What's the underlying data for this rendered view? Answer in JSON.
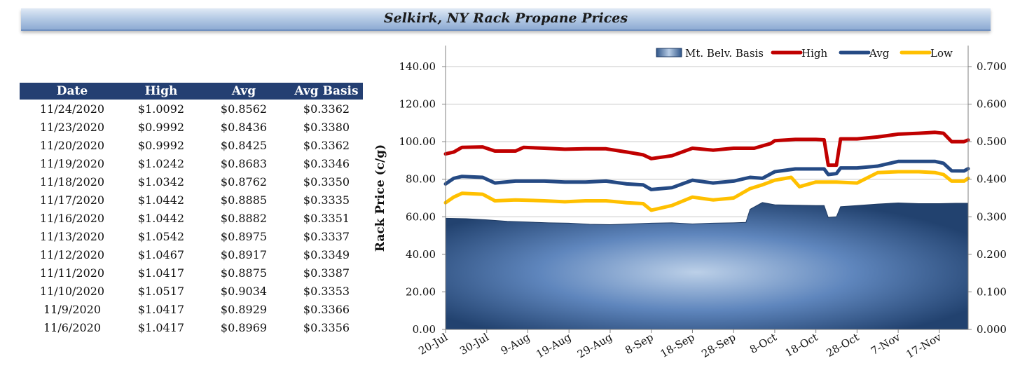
{
  "header": {
    "title": "Selkirk, NY Rack Propane Prices"
  },
  "table": {
    "columns": [
      "Date",
      "High",
      "Avg",
      "Avg Basis"
    ],
    "rows": [
      [
        "11/24/2020",
        "$1.0092",
        "$0.8562",
        "$0.3362"
      ],
      [
        "11/23/2020",
        "$0.9992",
        "$0.8436",
        "$0.3380"
      ],
      [
        "11/20/2020",
        "$0.9992",
        "$0.8425",
        "$0.3362"
      ],
      [
        "11/19/2020",
        "$1.0242",
        "$0.8683",
        "$0.3346"
      ],
      [
        "11/18/2020",
        "$1.0342",
        "$0.8762",
        "$0.3350"
      ],
      [
        "11/17/2020",
        "$1.0442",
        "$0.8885",
        "$0.3335"
      ],
      [
        "11/16/2020",
        "$1.0442",
        "$0.8882",
        "$0.3351"
      ],
      [
        "11/13/2020",
        "$1.0542",
        "$0.8975",
        "$0.3337"
      ],
      [
        "11/12/2020",
        "$1.0467",
        "$0.8917",
        "$0.3349"
      ],
      [
        "11/11/2020",
        "$1.0417",
        "$0.8875",
        "$0.3387"
      ],
      [
        "11/10/2020",
        "$1.0517",
        "$0.9034",
        "$0.3353"
      ],
      [
        "11/9/2020",
        "$1.0417",
        "$0.8929",
        "$0.3366"
      ],
      [
        "11/6/2020",
        "$1.0417",
        "$0.8969",
        "$0.3356"
      ]
    ]
  },
  "chart_data": {
    "type": "line",
    "ylabel": "Rack Price (c/g)",
    "ylim": [
      0,
      140
    ],
    "y2lim": [
      0,
      0.7
    ],
    "yticks": [
      "0.00",
      "20.00",
      "40.00",
      "60.00",
      "80.00",
      "100.00",
      "120.00",
      "140.00"
    ],
    "y2ticks": [
      "0.000",
      "0.100",
      "0.200",
      "0.300",
      "0.400",
      "0.500",
      "0.600",
      "0.700"
    ],
    "x_range": [
      "2020-07-20",
      "2020-11-24"
    ],
    "xticks": [
      {
        "label": "20-Jul",
        "date": "2020-07-20"
      },
      {
        "label": "30-Jul",
        "date": "2020-07-30"
      },
      {
        "label": "9-Aug",
        "date": "2020-08-09"
      },
      {
        "label": "19-Aug",
        "date": "2020-08-19"
      },
      {
        "label": "29-Aug",
        "date": "2020-08-29"
      },
      {
        "label": "8-Sep",
        "date": "2020-09-08"
      },
      {
        "label": "18-Sep",
        "date": "2020-09-18"
      },
      {
        "label": "28-Sep",
        "date": "2020-09-28"
      },
      {
        "label": "8-Oct",
        "date": "2020-10-08"
      },
      {
        "label": "18-Oct",
        "date": "2020-10-18"
      },
      {
        "label": "28-Oct",
        "date": "2020-10-28"
      },
      {
        "label": "7-Nov",
        "date": "2020-11-07"
      },
      {
        "label": "17-Nov",
        "date": "2020-11-17"
      }
    ],
    "legend_position": "top-right",
    "grid": "horizontal",
    "series": [
      {
        "name": "Mt. Belv. Basis",
        "type": "area",
        "axis": "right",
        "color": "#2f5588",
        "points": [
          [
            "2020-07-20",
            0.296
          ],
          [
            "2020-07-25",
            0.295
          ],
          [
            "2020-07-30",
            0.292
          ],
          [
            "2020-08-04",
            0.288
          ],
          [
            "2020-08-09",
            0.286
          ],
          [
            "2020-08-14",
            0.284
          ],
          [
            "2020-08-19",
            0.283
          ],
          [
            "2020-08-24",
            0.28
          ],
          [
            "2020-08-29",
            0.279
          ],
          [
            "2020-09-03",
            0.281
          ],
          [
            "2020-09-08",
            0.283
          ],
          [
            "2020-09-13",
            0.284
          ],
          [
            "2020-09-18",
            0.281
          ],
          [
            "2020-09-23",
            0.283
          ],
          [
            "2020-09-28",
            0.284
          ],
          [
            "2020-10-01",
            0.285
          ],
          [
            "2020-10-02",
            0.32
          ],
          [
            "2020-10-05",
            0.338
          ],
          [
            "2020-10-08",
            0.332
          ],
          [
            "2020-10-13",
            0.331
          ],
          [
            "2020-10-18",
            0.33
          ],
          [
            "2020-10-20",
            0.33
          ],
          [
            "2020-10-21",
            0.298
          ],
          [
            "2020-10-23",
            0.3
          ],
          [
            "2020-10-24",
            0.327
          ],
          [
            "2020-10-28",
            0.33
          ],
          [
            "2020-11-02",
            0.334
          ],
          [
            "2020-11-07",
            0.337
          ],
          [
            "2020-11-12",
            0.335
          ],
          [
            "2020-11-17",
            0.335
          ],
          [
            "2020-11-21",
            0.336
          ],
          [
            "2020-11-24",
            0.336
          ]
        ]
      },
      {
        "name": "High",
        "type": "line",
        "axis": "left",
        "color": "#c00000",
        "points": [
          [
            "2020-07-20",
            93.5
          ],
          [
            "2020-07-22",
            94.5
          ],
          [
            "2020-07-24",
            97
          ],
          [
            "2020-07-29",
            97.2
          ],
          [
            "2020-08-01",
            95
          ],
          [
            "2020-08-06",
            95
          ],
          [
            "2020-08-08",
            97
          ],
          [
            "2020-08-13",
            96.5
          ],
          [
            "2020-08-18",
            96
          ],
          [
            "2020-08-23",
            96.2
          ],
          [
            "2020-08-28",
            96.2
          ],
          [
            "2020-09-02",
            94.5
          ],
          [
            "2020-09-06",
            93
          ],
          [
            "2020-09-08",
            91
          ],
          [
            "2020-09-13",
            92.5
          ],
          [
            "2020-09-18",
            96.5
          ],
          [
            "2020-09-23",
            95.5
          ],
          [
            "2020-09-28",
            96.5
          ],
          [
            "2020-10-03",
            96.5
          ],
          [
            "2020-10-07",
            99
          ],
          [
            "2020-10-08",
            100.5
          ],
          [
            "2020-10-13",
            101.2
          ],
          [
            "2020-10-18",
            101.2
          ],
          [
            "2020-10-20",
            101
          ],
          [
            "2020-10-21",
            87.5
          ],
          [
            "2020-10-23",
            87.5
          ],
          [
            "2020-10-24",
            101.5
          ],
          [
            "2020-10-28",
            101.5
          ],
          [
            "2020-11-02",
            102.5
          ],
          [
            "2020-11-07",
            104
          ],
          [
            "2020-11-12",
            104.5
          ],
          [
            "2020-11-16",
            105
          ],
          [
            "2020-11-18",
            104.5
          ],
          [
            "2020-11-20",
            100
          ],
          [
            "2020-11-23",
            100
          ],
          [
            "2020-11-24",
            100.9
          ]
        ]
      },
      {
        "name": "Avg",
        "type": "line",
        "axis": "left",
        "color": "#254a84",
        "points": [
          [
            "2020-07-20",
            77.5
          ],
          [
            "2020-07-22",
            80.5
          ],
          [
            "2020-07-24",
            81.5
          ],
          [
            "2020-07-29",
            81
          ],
          [
            "2020-08-01",
            78
          ],
          [
            "2020-08-06",
            79
          ],
          [
            "2020-08-13",
            79
          ],
          [
            "2020-08-18",
            78.5
          ],
          [
            "2020-08-23",
            78.5
          ],
          [
            "2020-08-28",
            79
          ],
          [
            "2020-09-02",
            77.5
          ],
          [
            "2020-09-06",
            77
          ],
          [
            "2020-09-08",
            74.5
          ],
          [
            "2020-09-13",
            75.5
          ],
          [
            "2020-09-18",
            79.5
          ],
          [
            "2020-09-23",
            78
          ],
          [
            "2020-09-28",
            79
          ],
          [
            "2020-10-02",
            81
          ],
          [
            "2020-10-05",
            80.5
          ],
          [
            "2020-10-08",
            84
          ],
          [
            "2020-10-13",
            85.5
          ],
          [
            "2020-10-18",
            85.5
          ],
          [
            "2020-10-20",
            85.5
          ],
          [
            "2020-10-21",
            82.5
          ],
          [
            "2020-10-23",
            83
          ],
          [
            "2020-10-24",
            86
          ],
          [
            "2020-10-28",
            86
          ],
          [
            "2020-11-02",
            87
          ],
          [
            "2020-11-07",
            89.5
          ],
          [
            "2020-11-12",
            89.5
          ],
          [
            "2020-11-16",
            89.5
          ],
          [
            "2020-11-18",
            88.5
          ],
          [
            "2020-11-20",
            84.5
          ],
          [
            "2020-11-23",
            84.4
          ],
          [
            "2020-11-24",
            85.6
          ]
        ]
      },
      {
        "name": "Low",
        "type": "line",
        "axis": "left",
        "color": "#ffc000",
        "points": [
          [
            "2020-07-20",
            67.5
          ],
          [
            "2020-07-22",
            70.5
          ],
          [
            "2020-07-24",
            72.5
          ],
          [
            "2020-07-29",
            72
          ],
          [
            "2020-08-01",
            68.5
          ],
          [
            "2020-08-06",
            69
          ],
          [
            "2020-08-13",
            68.5
          ],
          [
            "2020-08-18",
            68
          ],
          [
            "2020-08-23",
            68.5
          ],
          [
            "2020-08-28",
            68.5
          ],
          [
            "2020-09-02",
            67.5
          ],
          [
            "2020-09-06",
            67
          ],
          [
            "2020-09-08",
            63.5
          ],
          [
            "2020-09-13",
            66
          ],
          [
            "2020-09-18",
            70.5
          ],
          [
            "2020-09-23",
            69
          ],
          [
            "2020-09-28",
            70
          ],
          [
            "2020-10-02",
            75
          ],
          [
            "2020-10-05",
            77
          ],
          [
            "2020-10-08",
            79.5
          ],
          [
            "2020-10-12",
            81
          ],
          [
            "2020-10-14",
            76
          ],
          [
            "2020-10-18",
            78.5
          ],
          [
            "2020-10-23",
            78.5
          ],
          [
            "2020-10-28",
            78
          ],
          [
            "2020-11-02",
            83.5
          ],
          [
            "2020-11-07",
            84
          ],
          [
            "2020-11-12",
            84
          ],
          [
            "2020-11-16",
            83.5
          ],
          [
            "2020-11-18",
            82.5
          ],
          [
            "2020-11-20",
            79
          ],
          [
            "2020-11-23",
            79
          ],
          [
            "2020-11-24",
            80.5
          ]
        ]
      }
    ]
  }
}
